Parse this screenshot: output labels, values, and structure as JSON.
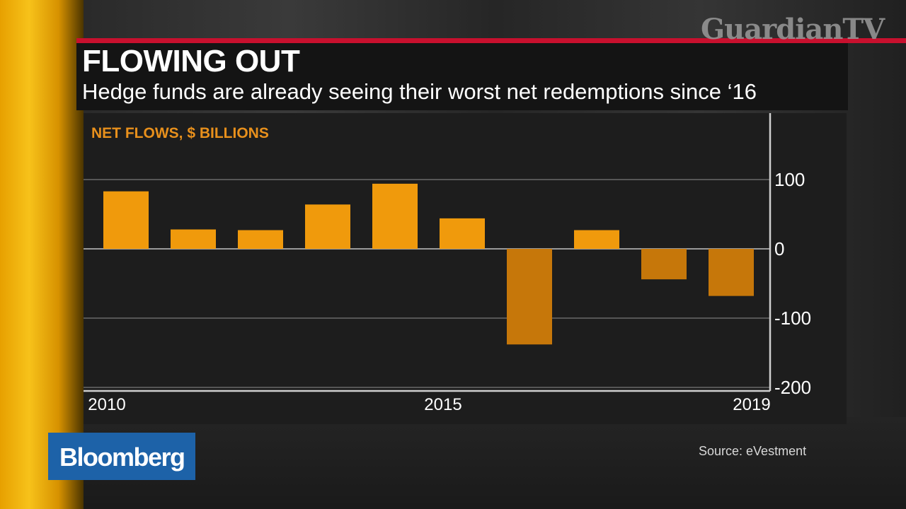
{
  "broadcast": {
    "watermark": "GuardianTV",
    "network_logo": "Bloomberg",
    "brand_color": "#1d62a8",
    "accent_color": "#c8102e"
  },
  "headline": {
    "title": "FLOWING OUT",
    "subtitle": "Hedge funds are already seeing their worst net redemptions since ‘16"
  },
  "source": "Source: eVestment",
  "chart_data": {
    "type": "bar",
    "title": "FLOWING OUT",
    "subtitle": "Hedge funds are already seeing their worst net redemptions since ‘16",
    "ylabel": "NET FLOWS, $ BILLIONS",
    "xlabel": "",
    "categories": [
      "2010",
      "2011",
      "2012",
      "2013",
      "2014",
      "2015",
      "2016",
      "2017",
      "2018",
      "2019"
    ],
    "values": [
      83,
      28,
      27,
      64,
      94,
      44,
      -138,
      27,
      -44,
      -68
    ],
    "x_tick_labels": [
      "2010",
      "2015",
      "2019"
    ],
    "y_tick_labels": [
      "100",
      "0",
      "-100",
      "-200"
    ],
    "y_ticks": [
      100,
      0,
      -100,
      -200
    ],
    "ylim": [
      -225,
      200
    ],
    "grid": true,
    "y_axis_position": "right",
    "bar_color": "#f09a0c",
    "bar_color_negative": "#c6770a"
  }
}
